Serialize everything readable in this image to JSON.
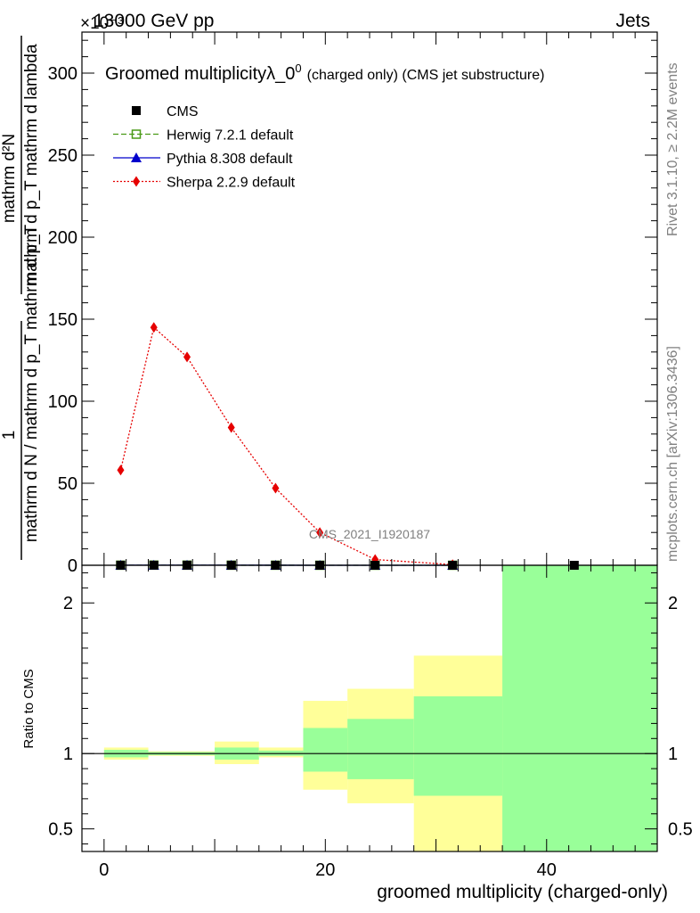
{
  "header": {
    "left": "13000 GeV pp",
    "right": "Jets",
    "exponent": "×10⁻³"
  },
  "side_labels": {
    "rivet": "Rivet 3.1.10, ≥ 2.2M events",
    "mcplots": "mcplots.cern.ch [arXiv:1306.3436]"
  },
  "chart_data": [
    {
      "type": "line",
      "title_main": "Groomed multiplicity",
      "title_lambda": "λ_0",
      "title_sup": "0",
      "title_suffix": "(charged only) (CMS jet substructure)",
      "watermark": "CMS_2021_I1920187",
      "ylabel_lines": [
        "1",
        "mathrm d N / mathrm d p_T mathrm d p_T",
        "mathrm d²N",
        "mathrm d p_T mathrm d lambda"
      ],
      "xlim": [
        -2,
        50
      ],
      "ylim": [
        0,
        325
      ],
      "yticks": [
        0,
        50,
        100,
        150,
        200,
        250,
        300
      ],
      "legend_position": "top-left",
      "series": [
        {
          "name": "CMS",
          "color": "#000000",
          "marker": "square",
          "x": [
            1.5,
            4.5,
            7.5,
            11.5,
            15.5,
            19.5,
            24.5,
            31.5,
            42.5
          ],
          "y": [
            0.05,
            0.08,
            0.07,
            0.05,
            0.03,
            0.01,
            0.005,
            0.002,
            0.001
          ]
        },
        {
          "name": "Herwig 7.2.1 default",
          "color": "#4a9a17",
          "marker": "open-square",
          "dash": "dashed",
          "x": [
            1.5,
            4.5,
            7.5,
            11.5,
            15.5,
            19.5,
            24.5,
            31.5
          ],
          "y": [
            0.05,
            0.08,
            0.07,
            0.05,
            0.03,
            0.01,
            0.005,
            0.002
          ]
        },
        {
          "name": "Pythia 8.308 default",
          "color": "#0000cc",
          "marker": "triangle",
          "dash": "solid",
          "x": [
            1.5,
            4.5,
            7.5,
            11.5,
            15.5,
            19.5,
            24.5,
            31.5
          ],
          "y": [
            0.05,
            0.08,
            0.07,
            0.05,
            0.03,
            0.01,
            0.005,
            0.002
          ]
        },
        {
          "name": "Sherpa 2.2.9 default",
          "color": "#e60000",
          "marker": "diamond",
          "dash": "dotted",
          "x": [
            1.5,
            4.5,
            7.5,
            11.5,
            15.5,
            19.5,
            24.5,
            31.5
          ],
          "y": [
            58,
            145,
            127,
            84,
            47,
            20,
            3.5,
            0.4
          ]
        }
      ]
    },
    {
      "type": "area",
      "ylabel": "Ratio to CMS",
      "xlabel": "groomed multiplicity (charged-only)",
      "xlim": [
        -2,
        50
      ],
      "ylim": [
        0.35,
        2.25
      ],
      "yticks": [
        0.5,
        1,
        2
      ],
      "xticks": [
        0,
        20,
        40
      ],
      "reference_line": 1,
      "bands": [
        {
          "x0": 0,
          "x1": 4,
          "yellow": [
            0.96,
            1.04
          ],
          "green": [
            0.975,
            1.025
          ]
        },
        {
          "x0": 4,
          "x1": 10,
          "yellow": [
            0.985,
            1.015
          ],
          "green": [
            0.99,
            1.01
          ]
        },
        {
          "x0": 10,
          "x1": 14,
          "yellow": [
            0.93,
            1.08
          ],
          "green": [
            0.96,
            1.04
          ]
        },
        {
          "x0": 14,
          "x1": 18,
          "yellow": [
            0.975,
            1.04
          ],
          "green": [
            0.985,
            1.02
          ]
        },
        {
          "x0": 18,
          "x1": 22,
          "yellow": [
            0.76,
            1.35
          ],
          "green": [
            0.88,
            1.17
          ]
        },
        {
          "x0": 22,
          "x1": 28,
          "yellow": [
            0.67,
            1.43
          ],
          "green": [
            0.83,
            1.23
          ]
        },
        {
          "x0": 28,
          "x1": 36,
          "yellow": [
            0.35,
            1.65
          ],
          "green": [
            0.72,
            1.38
          ]
        },
        {
          "x0": 36,
          "x1": 50,
          "yellow": [
            0.35,
            2.25
          ],
          "green": [
            0.35,
            2.25
          ]
        }
      ],
      "colors": {
        "yellow": "#ffff99",
        "green": "#99ff99"
      }
    }
  ]
}
